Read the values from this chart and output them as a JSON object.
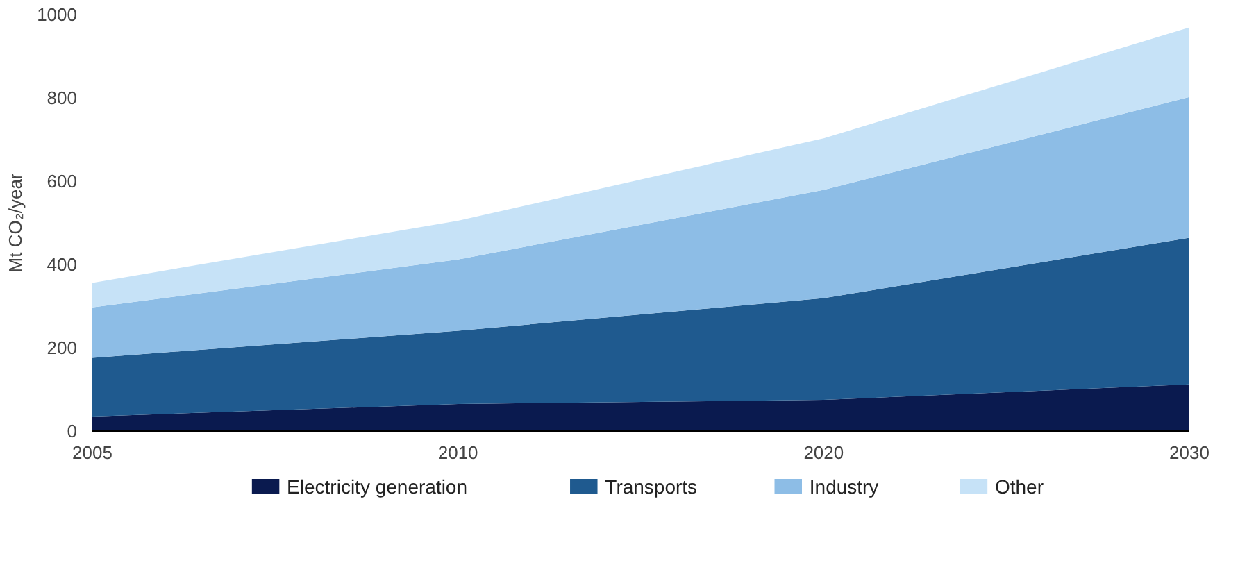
{
  "chart_data": {
    "type": "area",
    "stacked": true,
    "ylabel": "Mt CO₂/year",
    "categories": [
      "2005",
      "2010",
      "2020",
      "2030"
    ],
    "ylim": [
      0,
      1000
    ],
    "yticks": [
      0,
      200,
      400,
      600,
      800,
      1000
    ],
    "grid": false,
    "legend": "bottom",
    "series": [
      {
        "name": "Electricity generation",
        "color": "#0a1a4f",
        "values": [
          35,
          65,
          75,
          112
        ]
      },
      {
        "name": "Transports",
        "color": "#1f5a8f",
        "values": [
          141,
          176,
          244,
          352
        ]
      },
      {
        "name": "Industry",
        "color": "#8dbde6",
        "values": [
          121,
          171,
          260,
          338
        ]
      },
      {
        "name": "Other",
        "color": "#c6e2f7",
        "values": [
          59,
          93,
          124,
          167
        ]
      }
    ]
  }
}
